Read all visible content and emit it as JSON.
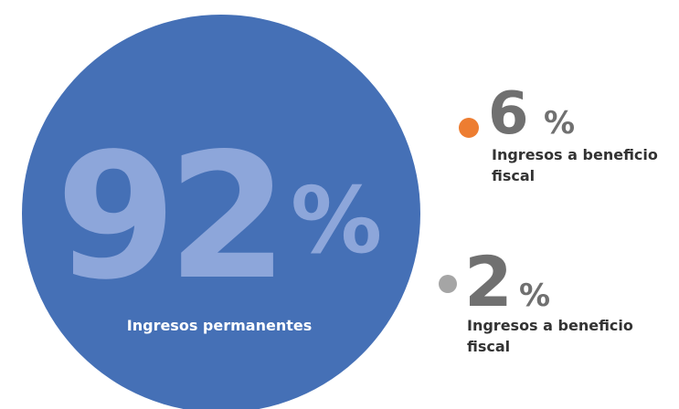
{
  "colors": {
    "main": "#4570b6",
    "main_text": "#8da6da",
    "orange": "#ed7d31",
    "gray": "#a5a5a5",
    "dark_text": "#333333",
    "light_text": "#ffffff",
    "small_pct": "#707070"
  },
  "chart_data": {
    "type": "bubble",
    "series": [
      {
        "value": 92,
        "unit": "%",
        "label": "Ingresos permanentes"
      },
      {
        "value": 6,
        "unit": "%",
        "label": "Ingresos a beneficio fiscal"
      },
      {
        "value": 2,
        "unit": "%",
        "label": "Ingresos a beneficio fiscal"
      }
    ]
  }
}
